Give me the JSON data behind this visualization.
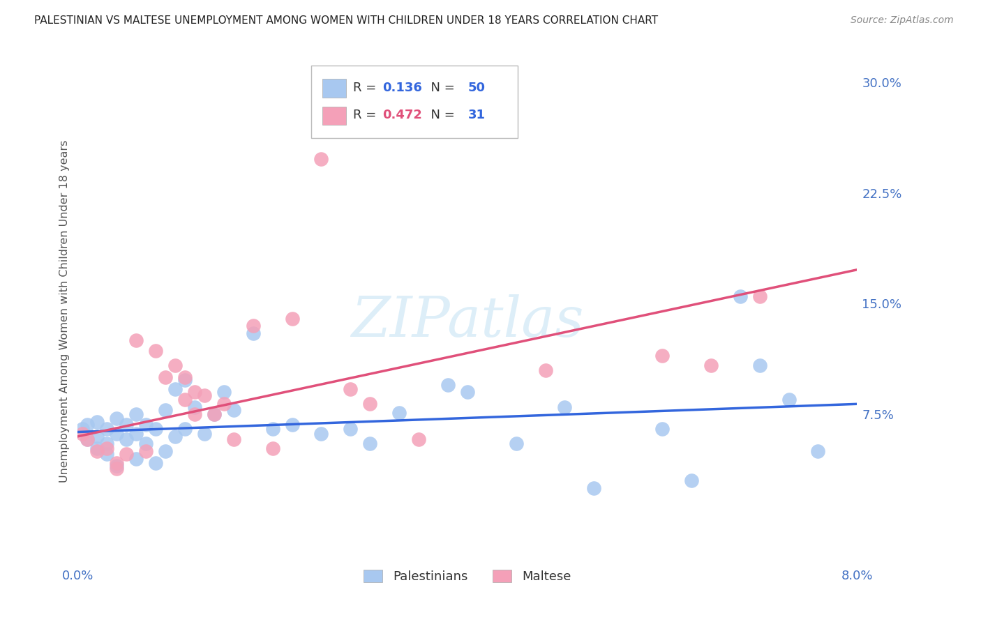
{
  "title": "PALESTINIAN VS MALTESE UNEMPLOYMENT AMONG WOMEN WITH CHILDREN UNDER 18 YEARS CORRELATION CHART",
  "source": "Source: ZipAtlas.com",
  "ylabel": "Unemployment Among Women with Children Under 18 years",
  "ytick_vals": [
    0.075,
    0.15,
    0.225,
    0.3
  ],
  "ytick_labels": [
    "7.5%",
    "15.0%",
    "22.5%",
    "30.0%"
  ],
  "xmin": 0.0,
  "xmax": 0.08,
  "ymin": -0.025,
  "ymax": 0.315,
  "r_blue": "0.136",
  "n_blue": "50",
  "r_pink": "0.472",
  "n_pink": "31",
  "blue_color": "#a8c8f0",
  "pink_color": "#f4a0b8",
  "blue_line_color": "#3366dd",
  "pink_line_color": "#e0507a",
  "blue_line_x0": 0.0,
  "blue_line_y0": 0.063,
  "blue_line_x1": 0.08,
  "blue_line_y1": 0.082,
  "pink_line_x0": 0.0,
  "pink_line_y0": 0.06,
  "pink_line_x1": 0.08,
  "pink_line_y1": 0.173,
  "axis_color": "#4472c4",
  "grid_color": "#cccccc",
  "title_color": "#222222",
  "source_color": "#888888",
  "watermark": "ZIPatlas",
  "watermark_color": "#ddeef8",
  "blue_scatter_x": [
    0.0005,
    0.001,
    0.001,
    0.002,
    0.002,
    0.002,
    0.003,
    0.003,
    0.003,
    0.004,
    0.004,
    0.004,
    0.005,
    0.005,
    0.006,
    0.006,
    0.006,
    0.007,
    0.007,
    0.008,
    0.008,
    0.009,
    0.009,
    0.01,
    0.01,
    0.011,
    0.011,
    0.012,
    0.013,
    0.014,
    0.015,
    0.016,
    0.018,
    0.02,
    0.022,
    0.025,
    0.028,
    0.03,
    0.033,
    0.038,
    0.04,
    0.045,
    0.05,
    0.053,
    0.06,
    0.063,
    0.068,
    0.07,
    0.073,
    0.076
  ],
  "blue_scatter_y": [
    0.065,
    0.068,
    0.058,
    0.07,
    0.06,
    0.052,
    0.065,
    0.055,
    0.048,
    0.072,
    0.062,
    0.04,
    0.068,
    0.058,
    0.075,
    0.062,
    0.045,
    0.068,
    0.055,
    0.065,
    0.042,
    0.078,
    0.05,
    0.092,
    0.06,
    0.098,
    0.065,
    0.08,
    0.062,
    0.075,
    0.09,
    0.078,
    0.13,
    0.065,
    0.068,
    0.062,
    0.065,
    0.055,
    0.076,
    0.095,
    0.09,
    0.055,
    0.08,
    0.025,
    0.065,
    0.03,
    0.155,
    0.108,
    0.085,
    0.05
  ],
  "pink_scatter_x": [
    0.0005,
    0.001,
    0.002,
    0.003,
    0.004,
    0.004,
    0.005,
    0.006,
    0.007,
    0.008,
    0.009,
    0.01,
    0.011,
    0.011,
    0.012,
    0.012,
    0.013,
    0.014,
    0.015,
    0.016,
    0.018,
    0.02,
    0.022,
    0.025,
    0.028,
    0.03,
    0.035,
    0.048,
    0.06,
    0.065,
    0.07
  ],
  "pink_scatter_y": [
    0.062,
    0.058,
    0.05,
    0.052,
    0.042,
    0.038,
    0.048,
    0.125,
    0.05,
    0.118,
    0.1,
    0.108,
    0.085,
    0.1,
    0.075,
    0.09,
    0.088,
    0.075,
    0.082,
    0.058,
    0.135,
    0.052,
    0.14,
    0.248,
    0.092,
    0.082,
    0.058,
    0.105,
    0.115,
    0.108,
    0.155
  ]
}
